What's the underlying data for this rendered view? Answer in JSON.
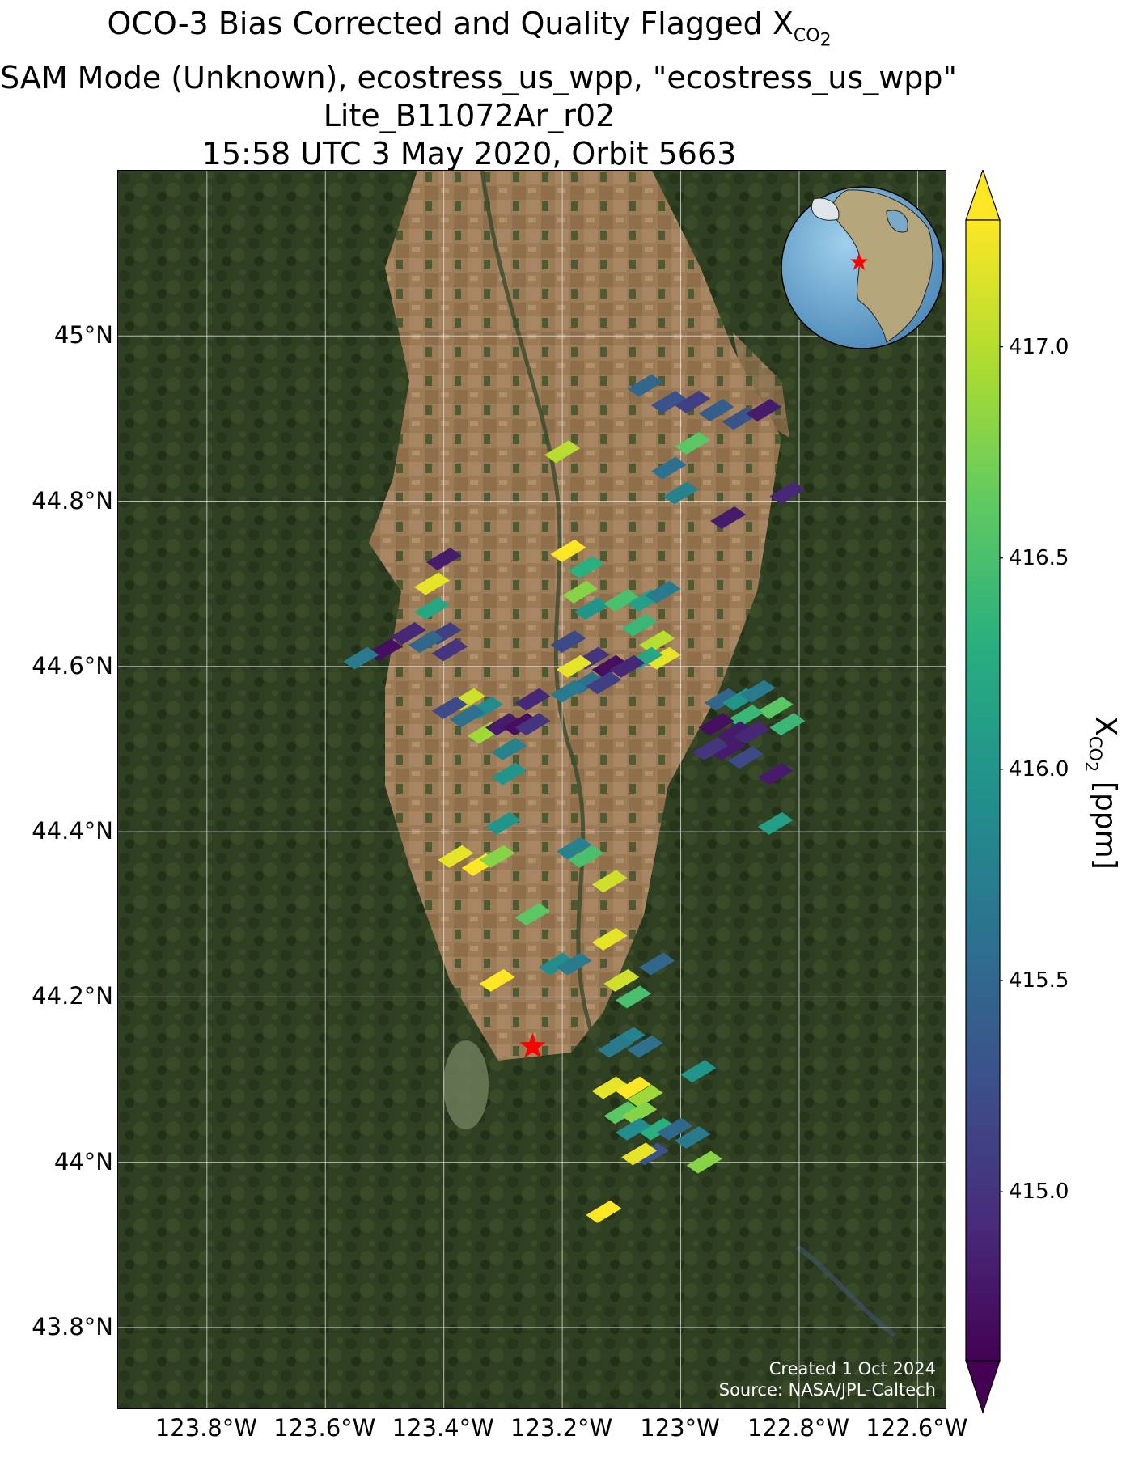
{
  "title": {
    "line1_prefix": "OCO-3 Bias Corrected and Quality Flagged X",
    "line1_sub": "CO",
    "line1_subsub": "2",
    "line2": "SAM Mode (Unknown), ecostress_us_wpp, \"ecostress_us_wpp\"",
    "line3": "Lite_B11072Ar_r02",
    "line4": "15:58 UTC 3 May 2020, Orbit 5663"
  },
  "credit": {
    "line1": "Created 1 Oct 2024",
    "line2": "Source: NASA/JPL-Caltech"
  },
  "colorbar": {
    "label_prefix": "X",
    "label_sub": "CO",
    "label_subsub": "2",
    "label_suffix": " [ppm]",
    "min": 414.6,
    "max": 417.3,
    "colormap": "viridis",
    "extend": "both",
    "ticks": [
      "415.0",
      "415.5",
      "416.0",
      "416.5",
      "417.0"
    ]
  },
  "inset_globe": {
    "marker": "red-star"
  },
  "chart_data": {
    "type": "map",
    "projection": "plate-carree",
    "lon_range": [
      -123.95,
      -122.55
    ],
    "lat_range": [
      43.7,
      45.2
    ],
    "gridlines": true,
    "xticks": [
      "123.8°W",
      "123.6°W",
      "123.4°W",
      "123.2°W",
      "123°W",
      "122.8°W",
      "122.6°W"
    ],
    "xtick_values": [
      -123.8,
      -123.6,
      -123.4,
      -123.2,
      -123.0,
      -122.8,
      -122.6
    ],
    "yticks": [
      "43.8°N",
      "44°N",
      "44.2°N",
      "44.4°N",
      "44.6°N",
      "44.8°N",
      "45°N"
    ],
    "ytick_values": [
      43.8,
      44.0,
      44.2,
      44.4,
      44.6,
      44.8,
      45.0
    ],
    "target_marker": {
      "lon": -123.25,
      "lat": 44.14,
      "symbol": "red-star"
    },
    "soundings": [
      [
        -123.06,
        44.94,
        415.5
      ],
      [
        -123.02,
        44.92,
        415.3
      ],
      [
        -122.98,
        44.92,
        415.1
      ],
      [
        -122.94,
        44.91,
        415.4
      ],
      [
        -122.9,
        44.9,
        415.3
      ],
      [
        -122.86,
        44.91,
        414.8
      ],
      [
        -122.98,
        44.87,
        416.6
      ],
      [
        -123.2,
        44.86,
        417.0
      ],
      [
        -123.02,
        44.84,
        415.6
      ],
      [
        -123.0,
        44.81,
        415.8
      ],
      [
        -122.82,
        44.81,
        414.9
      ],
      [
        -122.92,
        44.78,
        414.8
      ],
      [
        -123.4,
        44.73,
        414.8
      ],
      [
        -123.42,
        44.7,
        417.2
      ],
      [
        -123.42,
        44.67,
        416.2
      ],
      [
        -123.4,
        44.64,
        415.1
      ],
      [
        -123.43,
        44.63,
        415.5
      ],
      [
        -123.46,
        44.64,
        414.9
      ],
      [
        -123.5,
        44.62,
        414.7
      ],
      [
        -123.54,
        44.61,
        415.7
      ],
      [
        -123.39,
        44.62,
        415.0
      ],
      [
        -123.19,
        44.74,
        417.3
      ],
      [
        -123.16,
        44.72,
        416.3
      ],
      [
        -123.17,
        44.69,
        416.8
      ],
      [
        -123.15,
        44.67,
        416.0
      ],
      [
        -123.1,
        44.68,
        416.5
      ],
      [
        -123.06,
        44.68,
        416.1
      ],
      [
        -123.03,
        44.69,
        415.7
      ],
      [
        -123.07,
        44.65,
        416.4
      ],
      [
        -123.04,
        44.63,
        417.0
      ],
      [
        -123.03,
        44.61,
        417.2
      ],
      [
        -123.06,
        44.61,
        416.2
      ],
      [
        -123.19,
        44.63,
        415.2
      ],
      [
        -123.15,
        44.61,
        415.0
      ],
      [
        -123.12,
        44.6,
        414.7
      ],
      [
        -123.09,
        44.6,
        414.9
      ],
      [
        -123.18,
        44.6,
        417.2
      ],
      [
        -123.16,
        44.58,
        415.6
      ],
      [
        -123.13,
        44.58,
        415.1
      ],
      [
        -123.19,
        44.57,
        415.7
      ],
      [
        -123.36,
        44.56,
        417.1
      ],
      [
        -123.33,
        44.55,
        415.9
      ],
      [
        -123.36,
        44.54,
        415.6
      ],
      [
        -123.39,
        44.55,
        415.2
      ],
      [
        -123.33,
        44.52,
        416.9
      ],
      [
        -123.3,
        44.53,
        414.8
      ],
      [
        -123.27,
        44.53,
        414.7
      ],
      [
        -123.25,
        44.56,
        414.9
      ],
      [
        -123.25,
        44.53,
        415.0
      ],
      [
        -123.29,
        44.5,
        415.8
      ],
      [
        -123.29,
        44.47,
        416.0
      ],
      [
        -123.3,
        44.41,
        416.0
      ],
      [
        -122.93,
        44.56,
        415.5
      ],
      [
        -122.9,
        44.56,
        416.0
      ],
      [
        -122.87,
        44.57,
        415.7
      ],
      [
        -122.84,
        44.55,
        416.6
      ],
      [
        -122.82,
        44.53,
        416.4
      ],
      [
        -122.89,
        44.54,
        416.4
      ],
      [
        -122.94,
        44.53,
        414.7
      ],
      [
        -122.91,
        44.52,
        414.8
      ],
      [
        -122.88,
        44.52,
        414.9
      ],
      [
        -122.92,
        44.5,
        414.8
      ],
      [
        -122.95,
        44.5,
        415.0
      ],
      [
        -122.89,
        44.49,
        415.2
      ],
      [
        -122.84,
        44.47,
        414.8
      ],
      [
        -122.84,
        44.41,
        416.1
      ],
      [
        -123.38,
        44.37,
        417.2
      ],
      [
        -123.34,
        44.36,
        417.3
      ],
      [
        -123.31,
        44.37,
        416.8
      ],
      [
        -123.16,
        44.37,
        416.5
      ],
      [
        -123.18,
        44.38,
        415.8
      ],
      [
        -123.12,
        44.34,
        417.1
      ],
      [
        -123.25,
        44.3,
        416.6
      ],
      [
        -123.12,
        44.27,
        417.2
      ],
      [
        -123.21,
        44.24,
        415.9
      ],
      [
        -123.18,
        44.24,
        415.7
      ],
      [
        -123.04,
        44.24,
        415.5
      ],
      [
        -123.1,
        44.22,
        417.1
      ],
      [
        -123.08,
        44.2,
        416.5
      ],
      [
        -123.31,
        44.22,
        417.3
      ],
      [
        -123.09,
        44.15,
        415.8
      ],
      [
        -123.06,
        44.14,
        415.6
      ],
      [
        -123.11,
        44.14,
        415.7
      ],
      [
        -122.97,
        44.11,
        416.0
      ],
      [
        -123.12,
        44.09,
        417.2
      ],
      [
        -123.08,
        44.09,
        417.3
      ],
      [
        -123.06,
        44.08,
        416.9
      ],
      [
        -123.1,
        44.06,
        416.6
      ],
      [
        -123.07,
        44.06,
        416.8
      ],
      [
        -123.04,
        44.04,
        416.3
      ],
      [
        -123.08,
        44.04,
        415.9
      ],
      [
        -123.01,
        44.04,
        415.5
      ],
      [
        -122.98,
        44.03,
        415.7
      ],
      [
        -123.05,
        44.01,
        415.3
      ],
      [
        -123.07,
        44.01,
        417.2
      ],
      [
        -122.96,
        44.0,
        416.8
      ],
      [
        -123.13,
        43.94,
        417.3
      ]
    ]
  }
}
